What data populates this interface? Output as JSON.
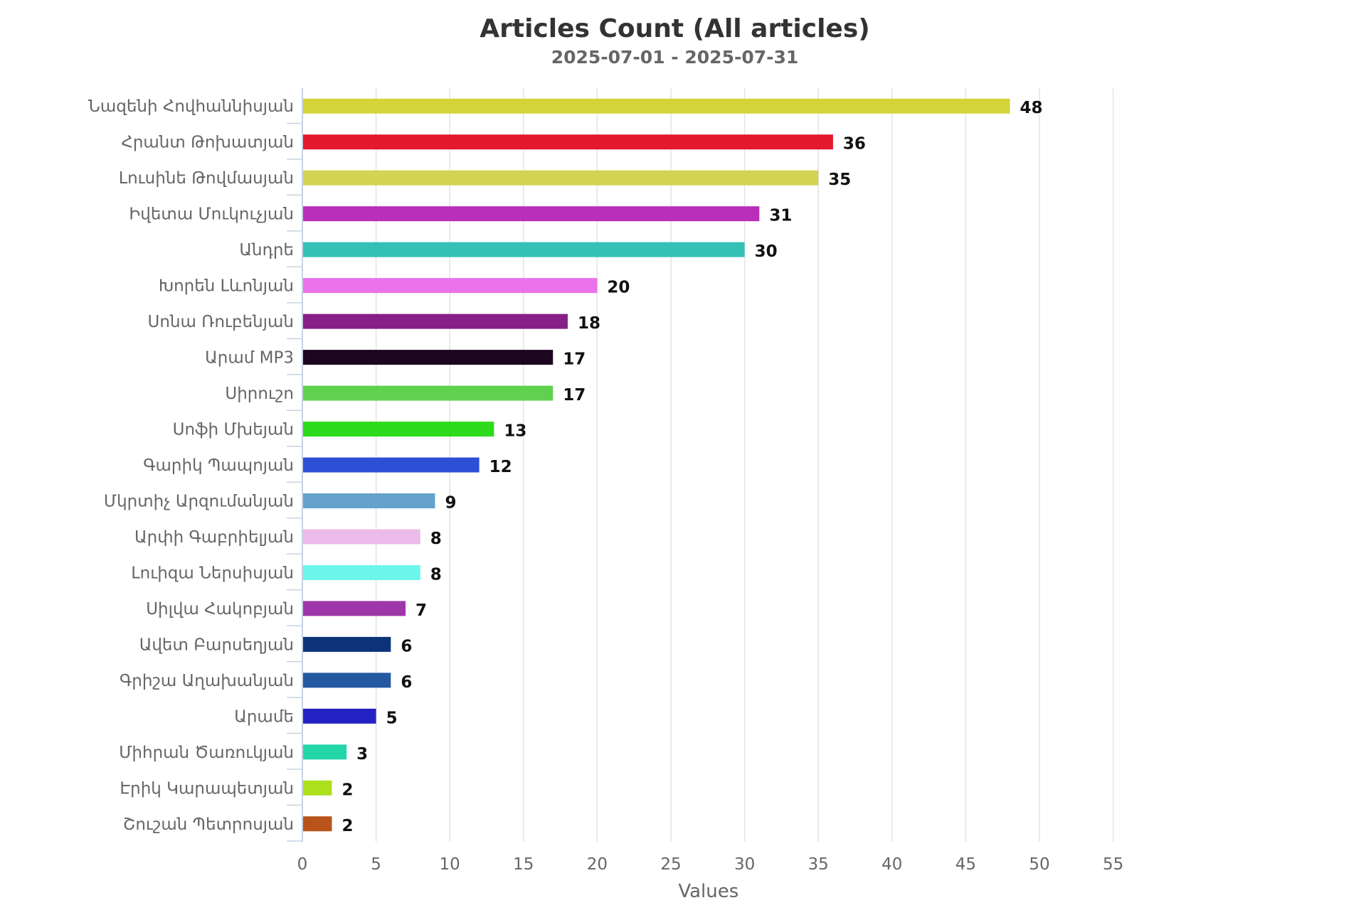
{
  "chart_data": {
    "type": "bar",
    "orientation": "horizontal",
    "title": "Articles Count (All articles)",
    "subtitle": "2025-07-01 - 2025-07-31",
    "xlabel": "Values",
    "ylabel": "",
    "xlim": [
      0,
      55
    ],
    "x_ticks": [
      "0",
      "5",
      "10",
      "15",
      "20",
      "25",
      "30",
      "35",
      "40",
      "45",
      "50",
      "55"
    ],
    "grid": "vertical",
    "legend": "none",
    "categories": [
      "Նազենի Հովհաննիսյան",
      "Հրանտ Թոխատյան",
      "Լուսինե Թովմասյան",
      "Իվետա Մուկուչյան",
      "Անդրե",
      "Խորեն Լևոնյան",
      "Սոնա Ռուբենյան",
      "Արամ MP3",
      "Սիրուշո",
      "Սոֆի Մխեյան",
      "Գարիկ Պապոյան",
      "Մկրտիչ Արզումանյան",
      "Արփի Գաբրիելյան",
      "Լուիզա Ներսիսյան",
      "Սիլվա Հակոբյան",
      "Ավետ Բարսեղյան",
      "Գրիշա Աղախանյան",
      "Արամե",
      "Միհրան Ծառուկյան",
      "Էրիկ Կարապետյան",
      "Շուշան Պետրոսյան"
    ],
    "values": [
      48,
      36,
      35,
      31,
      30,
      20,
      18,
      17,
      17,
      13,
      12,
      9,
      8,
      8,
      7,
      6,
      6,
      5,
      3,
      2,
      2
    ],
    "colors": [
      "#d4d43a",
      "#e3192d",
      "#d3d354",
      "#b92fba",
      "#34c0b5",
      "#ea72ea",
      "#861f87",
      "#1d0620",
      "#60d14e",
      "#2ddb1c",
      "#2c4fd6",
      "#64a2cb",
      "#ecbbe9",
      "#6bf5eb",
      "#9e36aa",
      "#0d347a",
      "#2459a2",
      "#2522c4",
      "#22d6a7",
      "#ace01c",
      "#b85319"
    ],
    "data_labels": [
      "48",
      "36",
      "35",
      "31",
      "30",
      "20",
      "18",
      "17",
      "17",
      "13",
      "12",
      "9",
      "8",
      "8",
      "7",
      "6",
      "6",
      "5",
      "3",
      "2",
      "2"
    ]
  }
}
